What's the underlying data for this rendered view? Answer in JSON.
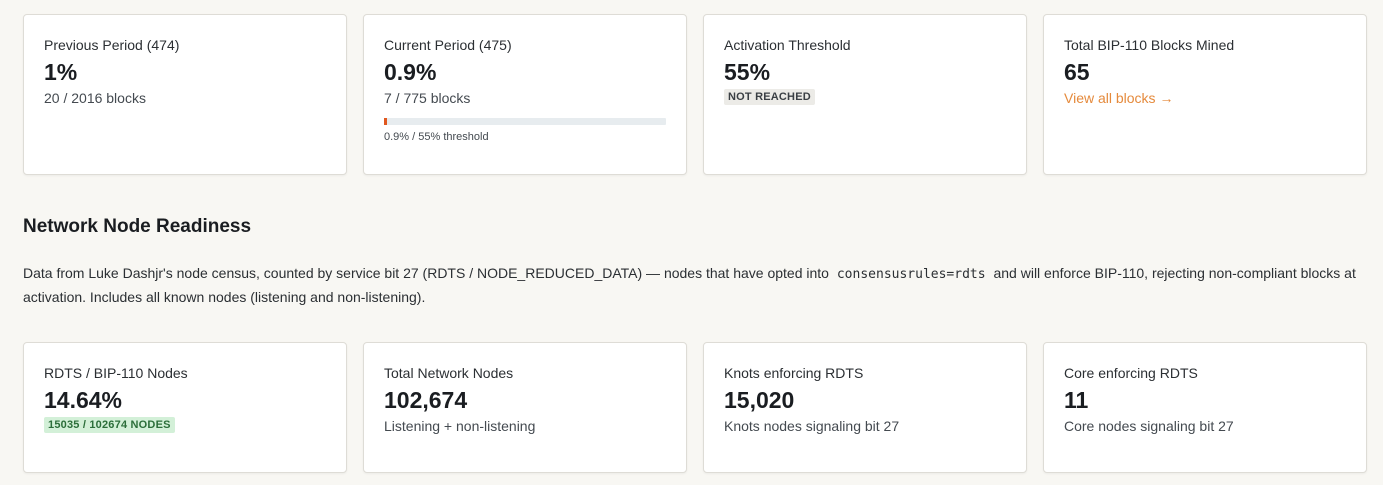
{
  "period_cards": [
    {
      "label": "Previous Period (474)",
      "value": "1%",
      "sub": "20 / 2016 blocks"
    },
    {
      "label": "Current Period (475)",
      "value": "0.9%",
      "sub": "7 / 775 blocks",
      "progress_percent": 0.9,
      "progress_caption": "0.9% / 55% threshold"
    },
    {
      "label": "Activation Threshold",
      "value": "55%",
      "badge": "NOT REACHED"
    },
    {
      "label": "Total BIP-110 Blocks Mined",
      "value": "65",
      "link": "View all blocks →"
    }
  ],
  "section": {
    "title": "Network Node Readiness",
    "desc_before": "Data from Luke Dashjr's node census, counted by service bit 27 (RDTS / NODE_REDUCED_DATA) — nodes that have opted into",
    "desc_code": "consensusrules=rdts",
    "desc_after": "and will enforce BIP-110, rejecting non-compliant blocks at activation. Includes all known nodes (listening and non-listening)."
  },
  "node_cards": [
    {
      "label": "RDTS / BIP-110 Nodes",
      "value": "14.64%",
      "badge": "15035 / 102674 NODES"
    },
    {
      "label": "Total Network Nodes",
      "value": "102,674",
      "sub": "Listening + non-listening"
    },
    {
      "label": "Knots enforcing RDTS",
      "value": "15,020",
      "sub": "Knots nodes signaling bit 27"
    },
    {
      "label": "Core enforcing RDTS",
      "value": "11",
      "sub": "Core nodes signaling bit 27"
    }
  ],
  "colors": {
    "accent_link": "#e58a3c",
    "progress_fill": "#e0581f",
    "badge_green_bg": "#d3f0d8"
  }
}
